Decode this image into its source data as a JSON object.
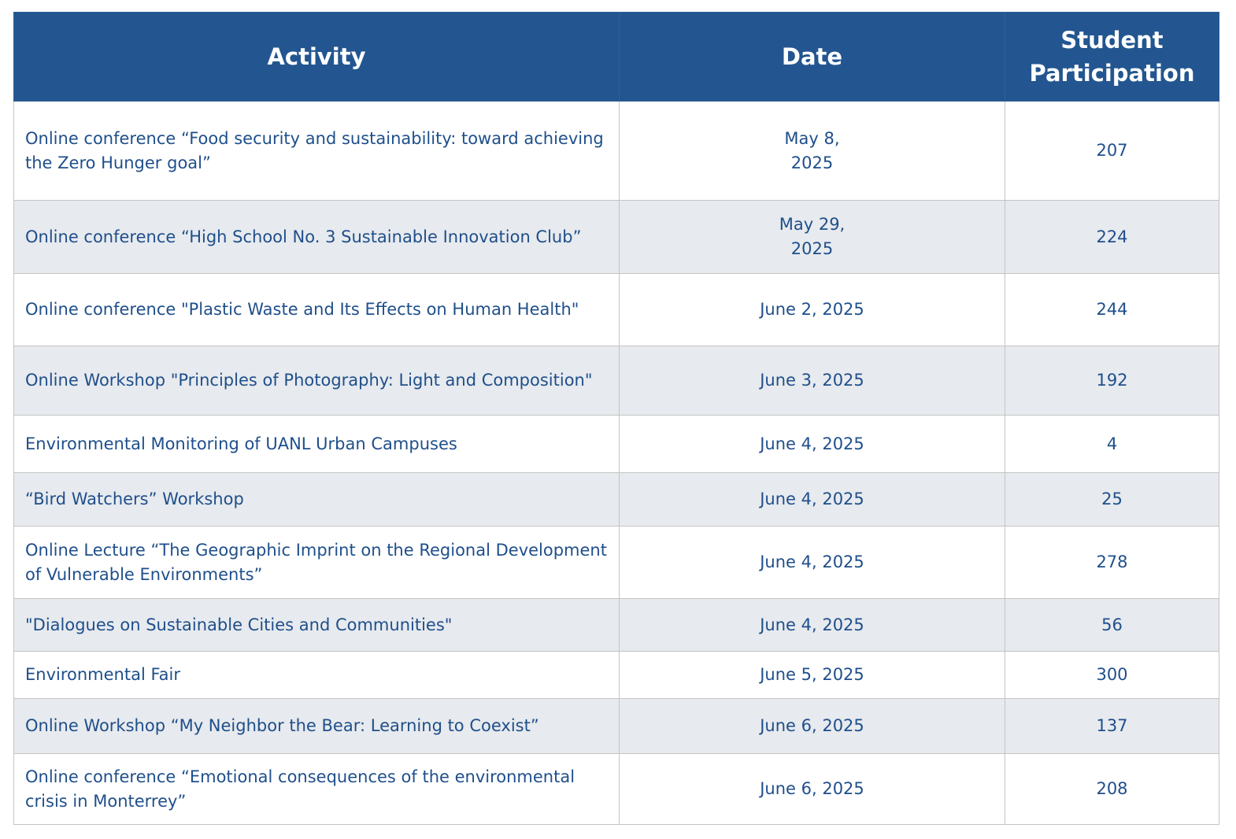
{
  "table": {
    "headers": [
      "Activity",
      "Date",
      "Student Participation"
    ],
    "rows": [
      [
        "Online conference “Food security and sustainability: toward achieving the Zero Hunger goal”",
        "May 8, 2025",
        207
      ],
      [
        "Online conference “High School No. 3 Sustainable Innovation Club”",
        "May 29, 2025",
        224
      ],
      [
        "Online conference \"Plastic Waste and Its Effects on Human Health\"",
        "June 2, 2025",
        244
      ],
      [
        "Online Workshop \"Principles of Photography: Light and Composition\"",
        "June 3, 2025",
        192
      ],
      [
        "Environmental Monitoring of UANL Urban Campuses",
        "June 4, 2025",
        4
      ],
      [
        "“Bird Watchers” Workshop",
        "June 4, 2025",
        25
      ],
      [
        "Online Lecture “The Geographic Imprint on the Regional Development of Vulnerable Environments”",
        "June 4, 2025",
        278
      ],
      [
        "\"Dialogues on Sustainable Cities and Communities\"",
        "June 4, 2025",
        56
      ],
      [
        "Environmental Fair",
        "June 5, 2025",
        300
      ],
      [
        "Online Workshop “My Neighbor the Bear: Learning to Coexist”",
        "June 6, 2025",
        137
      ],
      [
        "Online conference “Emotional consequences of the environmental crisis in Monterrey”",
        "June 6, 2025",
        208
      ]
    ]
  }
}
